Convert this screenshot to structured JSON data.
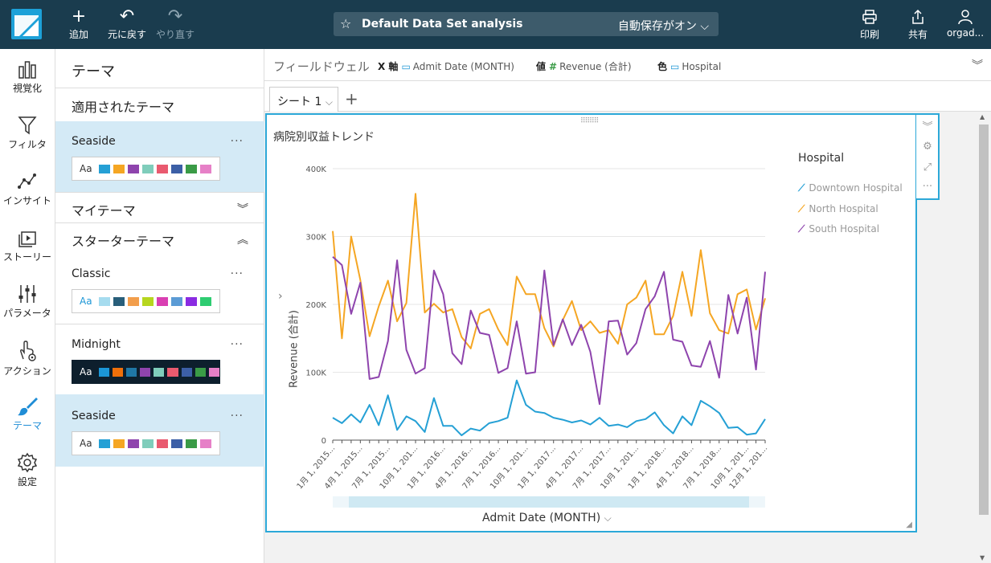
{
  "topbar": {
    "add_label": "追加",
    "undo_label": "元に戻す",
    "redo_label": "やり直す",
    "analysis_title": "Default Data Set analysis",
    "autosave_label": "自動保存がオン",
    "print_label": "印刷",
    "share_label": "共有",
    "user_label": "orgad..."
  },
  "rail": {
    "items": [
      {
        "label": "視覚化",
        "icon": "bar-chart-icon"
      },
      {
        "label": "フィルタ",
        "icon": "filter-icon"
      },
      {
        "label": "インサイト",
        "icon": "insights-icon"
      },
      {
        "label": "ストーリー",
        "icon": "story-icon"
      },
      {
        "label": "パラメータ",
        "icon": "parameters-icon"
      },
      {
        "label": "アクション",
        "icon": "action-icon"
      },
      {
        "label": "テーマ",
        "icon": "brush-icon"
      },
      {
        "label": "設定",
        "icon": "gear-icon"
      }
    ],
    "active_color": "#1f8dd6"
  },
  "panel": {
    "title": "テーマ",
    "applied_title": "適用されたテーマ",
    "my_themes_title": "マイテーマ",
    "starter_title": "スターターテーマ",
    "swatch_label": "Aa",
    "themes": [
      {
        "name": "Seaside",
        "colors": [
          "#25a0d5",
          "#f5a623",
          "#8e44ad",
          "#7fcdbb",
          "#e95a6f",
          "#3c5fa6",
          "#3a9b46",
          "#e680c7"
        ]
      },
      {
        "name": "Classic",
        "colors": [
          "#a6dcef",
          "#285e7a",
          "#f29e4c",
          "#b6d61f",
          "#d93fb2",
          "#5b9bd5",
          "#8a2be2",
          "#2ecc71"
        ]
      },
      {
        "name": "Midnight",
        "colors": [
          "#1b96d6",
          "#f0700a",
          "#1f77a6",
          "#8e44ad",
          "#7fcdbb",
          "#e95a6f",
          "#3c5fa6",
          "#3a9b46",
          "#e680c7"
        ]
      },
      {
        "name": "Seaside",
        "colors": [
          "#25a0d5",
          "#f5a623",
          "#8e44ad",
          "#7fcdbb",
          "#e95a6f",
          "#3c5fa6",
          "#3a9b46",
          "#e680c7"
        ]
      }
    ],
    "menu_dots": "···"
  },
  "fieldwell": {
    "label": "フィールドウェル",
    "x_label": "X 軸",
    "x_field": "Admit Date (MONTH)",
    "value_label": "値",
    "value_field": "Revenue (合計)",
    "color_label": "色",
    "color_field": "Hospital"
  },
  "sheets": {
    "tab_label": "シート 1"
  },
  "chart_data": {
    "type": "line",
    "title": "病院別収益トレンド",
    "xlabel": "Admit Date (MONTH)",
    "ylabel": "Revenue (合計)",
    "ylim": [
      0,
      400000
    ],
    "yticks": [
      {
        "value": 0,
        "label": "0"
      },
      {
        "value": 100000,
        "label": "100K"
      },
      {
        "value": 200000,
        "label": "200K"
      },
      {
        "value": 300000,
        "label": "300K"
      },
      {
        "value": 400000,
        "label": "400K"
      }
    ],
    "x_tick_labels": [
      "1月 1, 2015...",
      "4月 1, 2015...",
      "7月 1, 2015...",
      "10月 1, 201...",
      "1月 1, 2016...",
      "4月 1, 2016...",
      "7月 1, 2016...",
      "10月 1, 201...",
      "1月 1, 2017...",
      "4月 1, 2017...",
      "7月 1, 2017...",
      "10月 1, 201...",
      "1月 1, 2018...",
      "4月 1, 2018...",
      "7月 1, 2018...",
      "10月 1, 201...",
      "12月 1, 201..."
    ],
    "legend_title": "Hospital",
    "legend_position": "right",
    "grid": true,
    "series": [
      {
        "name": "Downtown Hospital",
        "color": "#25a0d5",
        "values": [
          33000,
          25000,
          38000,
          26000,
          52000,
          22000,
          66000,
          15000,
          35000,
          28000,
          12000,
          62000,
          21000,
          21000,
          7000,
          17000,
          14000,
          25000,
          28000,
          33000,
          88000,
          52000,
          42000,
          40000,
          33000,
          30000,
          26000,
          29000,
          23000,
          33000,
          21000,
          23000,
          19000,
          28000,
          31000,
          41000,
          22000,
          10000,
          35000,
          22000,
          58000,
          50000,
          40000,
          18000,
          19000,
          8000,
          10000,
          31000
        ]
      },
      {
        "name": "North Hospital",
        "color": "#f5a623",
        "values": [
          308000,
          150000,
          300000,
          236000,
          153000,
          197000,
          235000,
          175000,
          202000,
          363000,
          188000,
          201000,
          188000,
          193000,
          152000,
          135000,
          186000,
          193000,
          163000,
          140000,
          241000,
          215000,
          215000,
          165000,
          138000,
          177000,
          205000,
          162000,
          175000,
          158000,
          162000,
          142000,
          200000,
          210000,
          235000,
          156000,
          156000,
          183000,
          248000,
          183000,
          280000,
          187000,
          162000,
          157000,
          215000,
          222000,
          163000,
          209000
        ]
      },
      {
        "name": "South Hospital",
        "color": "#8e44ad",
        "values": [
          270000,
          258000,
          186000,
          232000,
          90000,
          93000,
          146000,
          265000,
          133000,
          98000,
          106000,
          250000,
          215000,
          128000,
          112000,
          191000,
          158000,
          155000,
          99000,
          106000,
          175000,
          98000,
          100000,
          250000,
          140000,
          178000,
          140000,
          170000,
          130000,
          53000,
          175000,
          176000,
          126000,
          143000,
          193000,
          212000,
          248000,
          148000,
          145000,
          110000,
          108000,
          146000,
          92000,
          214000,
          157000,
          210000,
          104000,
          248000
        ]
      }
    ]
  }
}
